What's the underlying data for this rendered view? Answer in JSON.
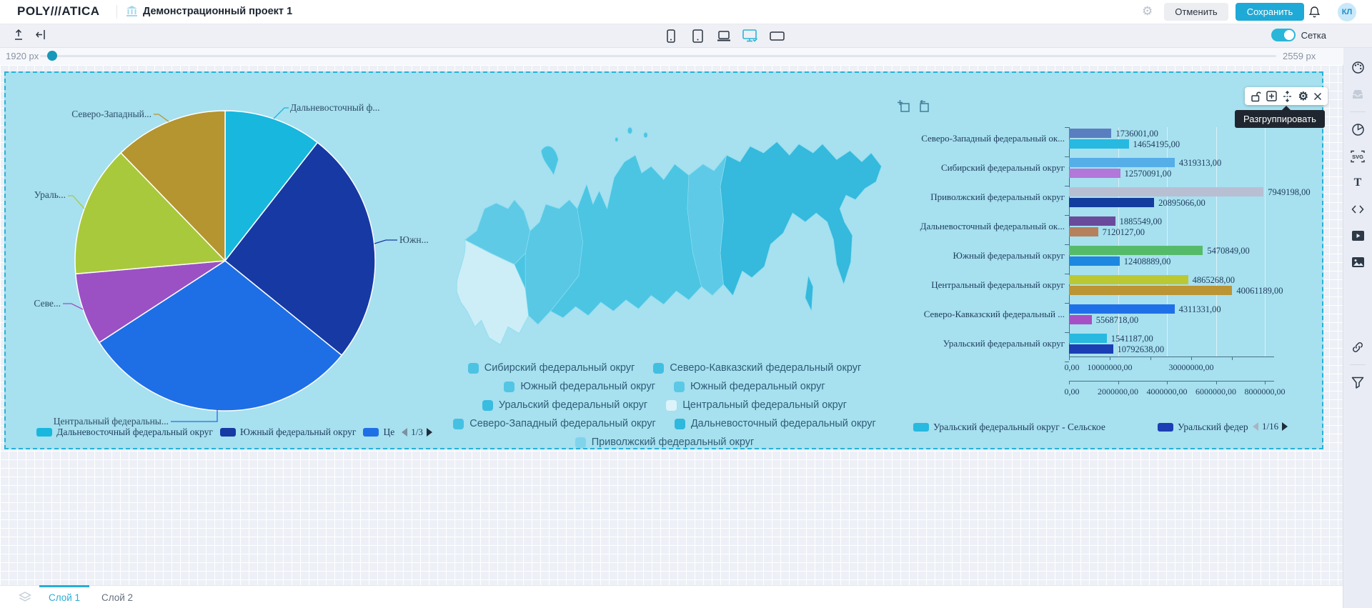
{
  "header": {
    "logo": "POLY///ATICA",
    "title": "Демонстрационный проект 1",
    "cancel_label": "Отменить",
    "save_label": "Сохранить",
    "avatar_initials": "КЛ"
  },
  "toolbar": {
    "grid_toggle_label": "Сетка",
    "device_icons": [
      "phone-icon",
      "tablet-icon",
      "laptop-icon",
      "monitor-icon",
      "tv-icon"
    ],
    "active_device": "monitor-icon",
    "accent_color": "#29b6d8"
  },
  "slider": {
    "left_label": "1920 px",
    "right_label": "2559 px"
  },
  "widget": {
    "tooltip": "Разгруппировать",
    "control_icons": [
      "unlock-icon",
      "add-icon",
      "ungroup-icon",
      "gear-icon",
      "close-icon"
    ],
    "background_color": "#a7e0ef",
    "selection_color": "#25b2d8"
  },
  "sidebar_icons": [
    "palette-icon",
    "tray-icon",
    "pie-chart-icon",
    "svg-icon",
    "text-icon",
    "code-icon",
    "video-icon",
    "image-icon",
    "link-icon",
    "filter-icon"
  ],
  "layers_bar": {
    "tabs": [
      "Слой 1",
      "Слой 2"
    ]
  },
  "chart_data": [
    {
      "type": "pie",
      "slices": [
        {
          "label": "Дальневосточный ф...",
          "color": "#18b7de",
          "start_deg": 0,
          "end_deg": 38
        },
        {
          "label": "Южн...",
          "color": "#1639a4",
          "start_deg": 38,
          "end_deg": 129
        },
        {
          "label": "Центральный федеральны...",
          "color": "#1e6fe6",
          "start_deg": 129,
          "end_deg": 237
        },
        {
          "label": "Севе...",
          "color": "#9b51c4",
          "start_deg": 237,
          "end_deg": 265
        },
        {
          "label": "Ураль...",
          "color": "#a9c93c",
          "start_deg": 265,
          "end_deg": 316
        },
        {
          "label": "Северо-Западный...",
          "color": "#b4952f",
          "start_deg": 316,
          "end_deg": 360
        }
      ],
      "legend": [
        {
          "label": "Дальневосточный федеральный округ",
          "color": "#18b7de"
        },
        {
          "label": "Южный федеральный округ",
          "color": "#1639a4"
        },
        {
          "label": "Це",
          "color": "#1e6fe6"
        }
      ],
      "pagination": "1/3",
      "legend_position": "bottom"
    },
    {
      "type": "map",
      "region": "Россия",
      "legend": [
        {
          "label": "Сибирский федеральный округ",
          "color": "#4cc3e3"
        },
        {
          "label": "Северо-Кавказский федеральный округ",
          "color": "#41bfe1"
        },
        {
          "label": "Южный федеральный округ",
          "color": "#52c6e4"
        },
        {
          "label": "Южный федеральный округ",
          "color": "#5bc9e6"
        },
        {
          "label": "Уральский федеральный округ",
          "color": "#38bce0"
        },
        {
          "label": "Центральный федеральный округ",
          "color": "#dcf3f9"
        },
        {
          "label": "Северо-Западный федеральный округ",
          "color": "#44c1e2"
        },
        {
          "label": "Дальневосточный федеральный округ",
          "color": "#2eb8dd"
        },
        {
          "label": "Приволжский федеральный округ",
          "color": "#7fd4ec"
        }
      ],
      "legend_rows": [
        [
          0,
          1
        ],
        [
          2,
          3
        ],
        [
          4,
          5
        ],
        [
          6,
          7
        ],
        [
          8
        ]
      ],
      "legend_position": "bottom"
    },
    {
      "type": "bar",
      "orientation": "horizontal",
      "categories": [
        "Северо-Западный федеральный ок...",
        "Сибирский федеральный округ",
        "Приволжский федеральный округ",
        "Дальневосточный федеральный ок...",
        "Южный федеральный округ",
        "Центральный федеральный округ",
        "Северо-Кавказский федеральный ...",
        "Уральский федеральный округ"
      ],
      "rows": [
        {
          "bars": [
            {
              "value": 1736001,
              "label": "1736001,00",
              "color": "#5a7fc0"
            },
            {
              "value": 14654195,
              "label": "14654195,00",
              "color": "#27b9e0"
            }
          ]
        },
        {
          "bars": [
            {
              "value": 4319313,
              "label": "4319313,00",
              "color": "#55aee8"
            },
            {
              "value": 12570091,
              "label": "12570091,00",
              "color": "#b277d8"
            }
          ]
        },
        {
          "bars": [
            {
              "value": 7949198,
              "label": "7949198,00",
              "color": "#b9bfd3"
            },
            {
              "value": 20895066,
              "label": "20895066,00",
              "color": "#123c9e"
            }
          ]
        },
        {
          "bars": [
            {
              "value": 1885549,
              "label": "1885549,00",
              "color": "#6a4a9b"
            },
            {
              "value": 7120127,
              "label": "7120127,00",
              "color": "#b5815c"
            }
          ]
        },
        {
          "bars": [
            {
              "value": 5470849,
              "label": "5470849,00",
              "color": "#55bb6a"
            },
            {
              "value": 12408889,
              "label": "12408889,00",
              "color": "#1e88e0"
            }
          ]
        },
        {
          "bars": [
            {
              "value": 4865268,
              "label": "4865268,00",
              "color": "#bcc832"
            },
            {
              "value": 40061189,
              "label": "40061189,00",
              "color": "#bb9434"
            }
          ]
        },
        {
          "bars": [
            {
              "value": 4311331,
              "label": "4311331,00",
              "color": "#1f70e8"
            },
            {
              "value": 5568718,
              "label": "5568718,00",
              "color": "#a750c5"
            }
          ]
        },
        {
          "bars": [
            {
              "value": 1541187,
              "label": "1541187,00",
              "color": "#27b9e0"
            },
            {
              "value": 10792638,
              "label": "10792638,00",
              "color": "#1b3eb4"
            }
          ]
        }
      ],
      "value_axis_1": {
        "tick_labels": [
          "0,00",
          "10000000,00",
          "30000000,00"
        ],
        "tick_values": [
          0,
          10000000,
          30000000
        ],
        "unlabeled_ticks": [
          20000000,
          40000000
        ],
        "max": 49000000
      },
      "value_axis_2": {
        "tick_labels": [
          "0,00",
          "2000000,00",
          "4000000,00",
          "6000000,00",
          "8000000,00"
        ],
        "tick_values": [
          0,
          2000000,
          4000000,
          6000000,
          8000000
        ],
        "max": 8200000
      },
      "legend": [
        {
          "label": "Уральский федеральный округ - Сельское",
          "color": "#27b9e0"
        },
        {
          "label": "Уральский федер",
          "color": "#1b3eb4"
        }
      ],
      "pagination": "1/16",
      "grid": true
    }
  ]
}
